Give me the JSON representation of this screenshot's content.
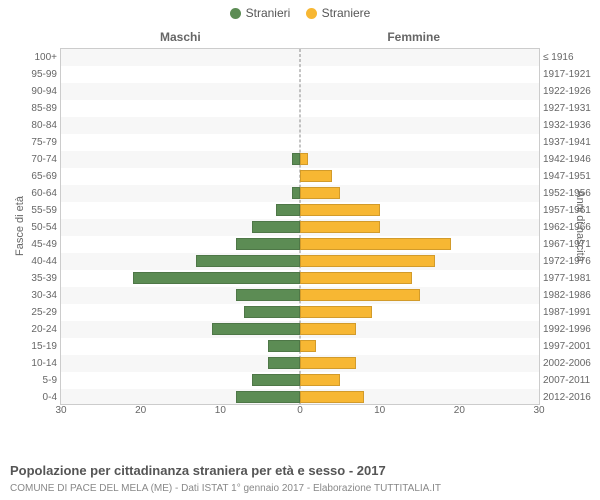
{
  "legend": {
    "items": [
      {
        "label": "Stranieri",
        "color": "#5c8c54"
      },
      {
        "label": "Straniere",
        "color": "#f7b733"
      }
    ]
  },
  "columns": {
    "left": "Maschi",
    "right": "Femmine"
  },
  "axes": {
    "left_label": "Fasce di età",
    "right_label": "Anni di nascita",
    "x_max": 30,
    "x_ticks": [
      30,
      20,
      10,
      0,
      10,
      20,
      30
    ]
  },
  "colors": {
    "male": "#5c8c54",
    "female": "#f7b733",
    "grid_alt": "#f7f7f7",
    "border": "#cccccc"
  },
  "rows": [
    {
      "age": "100+",
      "birth": "≤ 1916",
      "m": 0,
      "f": 0
    },
    {
      "age": "95-99",
      "birth": "1917-1921",
      "m": 0,
      "f": 0
    },
    {
      "age": "90-94",
      "birth": "1922-1926",
      "m": 0,
      "f": 0
    },
    {
      "age": "85-89",
      "birth": "1927-1931",
      "m": 0,
      "f": 0
    },
    {
      "age": "80-84",
      "birth": "1932-1936",
      "m": 0,
      "f": 0
    },
    {
      "age": "75-79",
      "birth": "1937-1941",
      "m": 0,
      "f": 0
    },
    {
      "age": "70-74",
      "birth": "1942-1946",
      "m": 1,
      "f": 1
    },
    {
      "age": "65-69",
      "birth": "1947-1951",
      "m": 0,
      "f": 4
    },
    {
      "age": "60-64",
      "birth": "1952-1956",
      "m": 1,
      "f": 5
    },
    {
      "age": "55-59",
      "birth": "1957-1961",
      "m": 3,
      "f": 10
    },
    {
      "age": "50-54",
      "birth": "1962-1966",
      "m": 6,
      "f": 10
    },
    {
      "age": "45-49",
      "birth": "1967-1971",
      "m": 8,
      "f": 19
    },
    {
      "age": "40-44",
      "birth": "1972-1976",
      "m": 13,
      "f": 17
    },
    {
      "age": "35-39",
      "birth": "1977-1981",
      "m": 21,
      "f": 14
    },
    {
      "age": "30-34",
      "birth": "1982-1986",
      "m": 8,
      "f": 15
    },
    {
      "age": "25-29",
      "birth": "1987-1991",
      "m": 7,
      "f": 9
    },
    {
      "age": "20-24",
      "birth": "1992-1996",
      "m": 11,
      "f": 7
    },
    {
      "age": "15-19",
      "birth": "1997-2001",
      "m": 4,
      "f": 2
    },
    {
      "age": "10-14",
      "birth": "2002-2006",
      "m": 4,
      "f": 7
    },
    {
      "age": "5-9",
      "birth": "2007-2011",
      "m": 6,
      "f": 5
    },
    {
      "age": "0-4",
      "birth": "2012-2016",
      "m": 8,
      "f": 8
    }
  ],
  "caption": "Popolazione per cittadinanza straniera per età e sesso - 2017",
  "subcaption": "COMUNE DI PACE DEL MELA (ME) - Dati ISTAT 1° gennaio 2017 - Elaborazione TUTTITALIA.IT"
}
